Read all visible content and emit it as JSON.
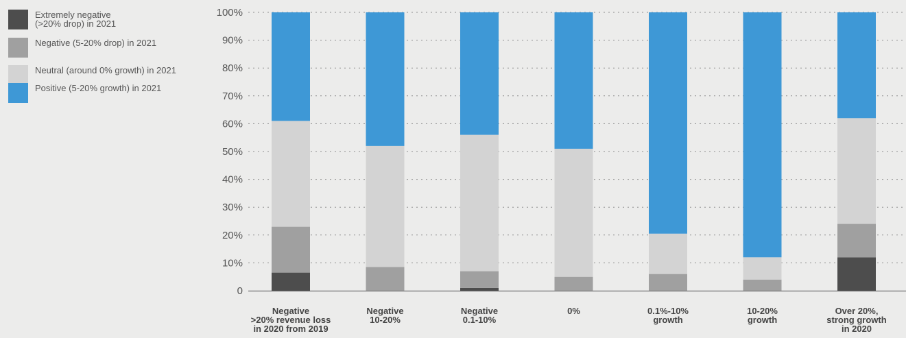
{
  "chart_data": {
    "type": "bar",
    "stacked": true,
    "categories": [
      "Negative\n>20% revenue loss\nin 2020 from 2019",
      "Negative\n10-20%",
      "Negative\n0.1-10%",
      "0%",
      "0.1%-10%\ngrowth",
      "10-20%\ngrowth",
      "Over 20%,\nstrong growth\nin 2020"
    ],
    "series": [
      {
        "name": "Extremely negative\n(>20% drop) in 2021",
        "color": "#4d4d4d",
        "values": [
          6.5,
          0,
          1,
          0,
          0,
          0,
          12
        ]
      },
      {
        "name": "Negative (5-20% drop) in 2021",
        "color": "#a0a0a0",
        "values": [
          16.5,
          8.5,
          6,
          5,
          6,
          4,
          12
        ]
      },
      {
        "name": "Neutral (around 0% growth) in 2021",
        "color": "#d3d3d3",
        "values": [
          38,
          43.5,
          49,
          46,
          14.5,
          8,
          38
        ]
      },
      {
        "name": "Positive (5-20% growth) in 2021",
        "color": "#3e98d6",
        "values": [
          39,
          48,
          44,
          49,
          79.5,
          88,
          38
        ]
      }
    ],
    "yticks": [
      "0",
      "10%",
      "20%",
      "30%",
      "40%",
      "50%",
      "60%",
      "70%",
      "80%",
      "90%",
      "100%"
    ],
    "ylim": [
      0,
      100
    ],
    "grid": true,
    "legend_position": "top-left"
  }
}
